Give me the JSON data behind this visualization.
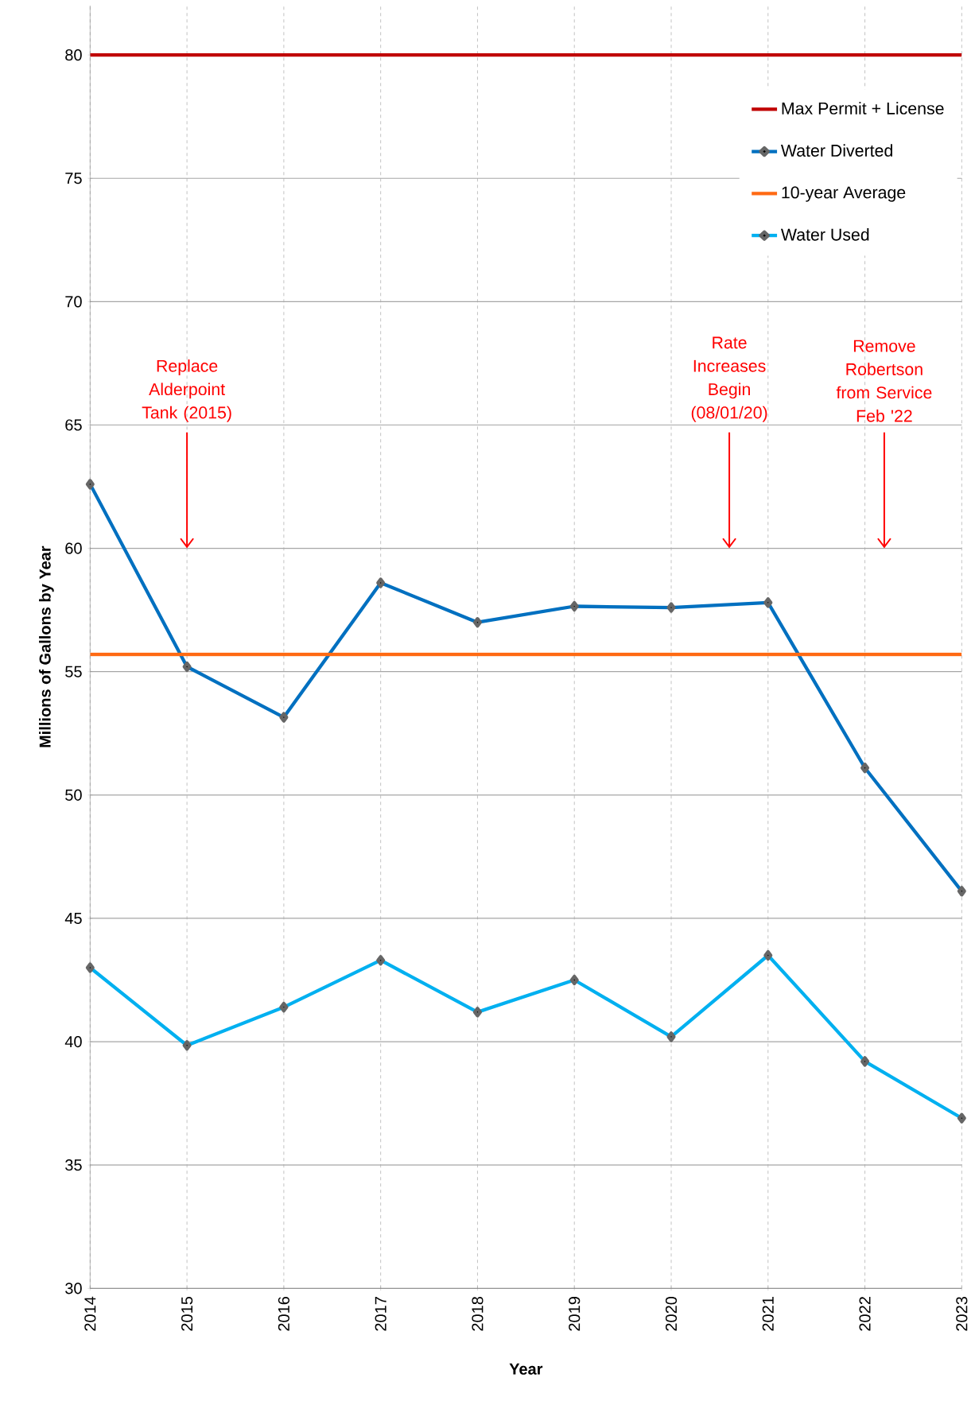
{
  "chart_data": {
    "type": "line",
    "xlabel": "Year",
    "ylabel": "Millions of Gallons by Year",
    "x": [
      2014,
      2015,
      2016,
      2017,
      2018,
      2019,
      2020,
      2021,
      2022,
      2023
    ],
    "xlim": [
      2014,
      2023
    ],
    "xticks": [
      2014,
      2015,
      2016,
      2017,
      2018,
      2019,
      2020,
      2021,
      2022,
      2023
    ],
    "ylim": [
      30,
      82
    ],
    "yticks": [
      30,
      35,
      40,
      45,
      50,
      55,
      60,
      65,
      70,
      75,
      80
    ],
    "grid": true,
    "legend": "top right",
    "series": [
      {
        "name": "Max Permit + License",
        "color": "#c00000",
        "marker": "none",
        "values": [
          80,
          80,
          80,
          80,
          80,
          80,
          80,
          80,
          80,
          80
        ]
      },
      {
        "name": "Water Diverted",
        "color": "#0070c0",
        "marker": "diamond",
        "values": [
          62.6,
          55.2,
          53.15,
          58.6,
          57.0,
          57.65,
          57.6,
          57.8,
          51.1,
          46.1
        ]
      },
      {
        "name": "10-year Average",
        "color": "#ff6a13",
        "marker": "none",
        "values": [
          55.7,
          55.7,
          55.7,
          55.7,
          55.7,
          55.7,
          55.7,
          55.7,
          55.7,
          55.7
        ]
      },
      {
        "name": "Water Used",
        "color": "#00b0f0",
        "marker": "diamond",
        "values": [
          43.0,
          39.85,
          41.4,
          43.3,
          41.2,
          42.5,
          40.2,
          43.5,
          39.2,
          36.9
        ]
      }
    ],
    "annotations": [
      "Replace Alderpoint Tank (2015)",
      "Rate Increases Begin (08/01/20)",
      "Remove Robertson from Service Feb '22"
    ]
  }
}
